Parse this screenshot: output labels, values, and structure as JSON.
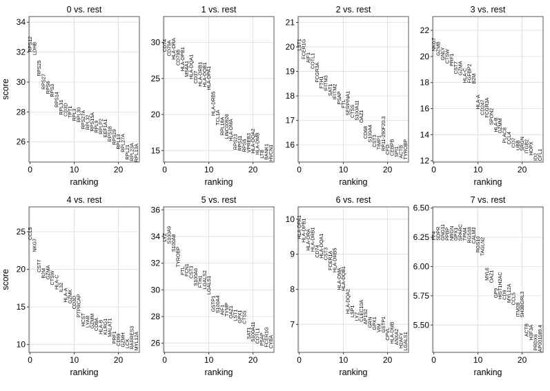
{
  "chart_data": [
    {
      "type": "scatter",
      "title": "0 vs. rest",
      "xlabel": "ranking",
      "ylabel": "score",
      "xticks": [
        0,
        10,
        20
      ],
      "yticks": [
        "26",
        "28",
        "30",
        "32",
        "34"
      ],
      "ylim": [
        24.65,
        34.38
      ],
      "grid": true,
      "genes": [
        "RPS12",
        "LDHB",
        "RPS25",
        "RPS27",
        "RPS6",
        "RPS3",
        "RPS14",
        "RPL31",
        "CD3D",
        "TPT1",
        "RPL3",
        "RPL30",
        "RPS27A",
        "RPL32",
        "RPS15A",
        "RPL9",
        "RPLP2",
        "EEF1A1",
        "RPS18",
        "RPS29",
        "RPL13",
        "RPL27A",
        "RPL21",
        "RPL23A",
        "RPL13A"
      ],
      "scores": [
        32.0,
        31.8,
        30.4,
        29.5,
        29.2,
        29.0,
        28.3,
        27.8,
        27.7,
        27.6,
        27.4,
        27.3,
        26.85,
        26.8,
        26.7,
        26.6,
        26.5,
        26.3,
        26.0,
        25.8,
        25.5,
        25.3,
        24.8,
        24.7,
        24.65
      ]
    },
    {
      "type": "scatter",
      "title": "1 vs. rest",
      "xlabel": "ranking",
      "ylabel": "",
      "xticks": [
        0,
        10,
        20
      ],
      "yticks": [
        "15",
        "20",
        "25",
        "30"
      ],
      "ylim": [
        13.4,
        33.6
      ],
      "grid": true,
      "genes": [
        "CD74",
        "CD79A",
        "HLA-DRA",
        "CD79B",
        "HLA-DPB1",
        "MS4A1",
        "HLA-DQA1",
        "CD37",
        "HLA-DRB1",
        "HLA-DQB1",
        "HLA-DPA1",
        "HLA-DRB5",
        "TCL1A",
        "RPL18A",
        "LINC00926",
        "HLA-DMA",
        "RPS23",
        "RPS11",
        "RPS5",
        "VPREB3",
        "HLA-DQA2",
        "HLA-DMB",
        "LTB",
        "BANK1",
        "HVCN1"
      ],
      "scores": [
        28.7,
        28.1,
        27.6,
        26.8,
        26.0,
        25.2,
        24.9,
        24.3,
        23.9,
        23.8,
        23.4,
        19.8,
        18.5,
        17.1,
        16.6,
        16.3,
        15.1,
        14.95,
        14.8,
        14.7,
        14.6,
        14.4,
        13.9,
        13.7,
        13.5
      ]
    },
    {
      "type": "scatter",
      "title": "2 vs. rest",
      "xlabel": "ranking",
      "ylabel": "",
      "xticks": [
        0,
        10,
        20
      ],
      "yticks": [
        "16",
        "17",
        "18",
        "19",
        "20",
        "21"
      ],
      "ylim": [
        15.3,
        21.24
      ],
      "grid": true,
      "genes": [
        "LST1",
        "FCER1G",
        "AIF1",
        "COTL1",
        "FCGR3A",
        "FTH1",
        "IFITM3",
        "SAT1",
        "IFITM2",
        "PSAP",
        "FTL",
        "SERPINA1",
        "CTSS",
        "S100A11",
        "OAZ1",
        "CD68",
        "S100A4",
        "CST3",
        "TIMP1",
        "RP11-290F20.3",
        "CFD",
        "CEBPB",
        "SPI1",
        "ACTB",
        "TYROBP"
      ],
      "scores": [
        19.85,
        19.5,
        19.35,
        19.1,
        18.55,
        18.3,
        18.2,
        18.0,
        17.85,
        17.65,
        17.5,
        17.2,
        17.1,
        17.0,
        16.9,
        16.25,
        16.1,
        15.9,
        15.8,
        15.75,
        15.6,
        15.55,
        15.5,
        15.45,
        15.4
      ]
    },
    {
      "type": "scatter",
      "title": "3 vs. rest",
      "xlabel": "ranking",
      "ylabel": "",
      "xticks": [
        0,
        10,
        20
      ],
      "yticks": [
        "12",
        "14",
        "16",
        "18",
        "20",
        "22"
      ],
      "ylim": [
        11.9,
        23.06
      ],
      "grid": true,
      "genes": [
        "NKG7",
        "GZMB",
        "GNLY",
        "CTSW",
        "PRF1",
        "CST7",
        "GZMA",
        "HLA-C",
        "FGFBP2",
        "B2M",
        "HLA-A",
        "CD247",
        "FCGR3A",
        "SPON2",
        "HLA-B",
        "GZMM",
        "PLAC8",
        "CCL4",
        "CD7",
        "UBB",
        "SRGN",
        "ITGB2",
        "HOPX",
        "ID2",
        "CFL1"
      ],
      "scores": [
        20.4,
        20.05,
        19.7,
        19.45,
        19.25,
        18.65,
        18.55,
        17.97,
        17.95,
        17.9,
        15.95,
        15.5,
        15.3,
        14.75,
        14.2,
        14.1,
        13.35,
        13.25,
        13.0,
        12.8,
        12.75,
        12.55,
        12.4,
        12.0,
        11.98
      ]
    },
    {
      "type": "scatter",
      "title": "4 vs. rest",
      "xlabel": "ranking",
      "ylabel": "score",
      "xticks": [
        0,
        10,
        20
      ],
      "yticks": [
        "10",
        "15",
        "20",
        "25"
      ],
      "ylim": [
        8.96,
        28.3
      ],
      "grid": true,
      "genes": [
        "CCL5",
        "NKG7",
        "CST7",
        "B2M",
        "GZMA",
        "CTSW",
        "HLA-C",
        "IL32",
        "HLA-A",
        "GZMK",
        "CD3D",
        "PTPRCAP",
        "HCST",
        "LYAR",
        "GZMM",
        "CD8A",
        "HLA-B",
        "KLRG1",
        "MALAT1",
        "PRF1",
        "CD99",
        "GZMH",
        "LCK",
        "RARRES3",
        "MYL12A"
      ],
      "scores": [
        23.9,
        22.3,
        19.6,
        18.8,
        18.65,
        17.9,
        17.3,
        16.95,
        15.6,
        15.45,
        14.7,
        13.6,
        12.4,
        12.25,
        12.1,
        11.8,
        11.35,
        11.3,
        11.0,
        10.1,
        9.8,
        9.65,
        9.5,
        9.35,
        9.2
      ]
    },
    {
      "type": "scatter",
      "title": "5 vs. rest",
      "xlabel": "ranking",
      "ylabel": "",
      "xticks": [
        0,
        10,
        20
      ],
      "yticks": [
        "26",
        "28",
        "30",
        "32",
        "34",
        "36"
      ],
      "ylim": [
        25.31,
        36.22
      ],
      "grid": true,
      "genes": [
        "LYZ",
        "S100A9",
        "S100A8",
        "TYROBP",
        "FTL",
        "FCN1",
        "CST3",
        "S100A6",
        "FTH1",
        "LGALS2",
        "LGALS1",
        "GSTP1",
        "S100A4",
        "AIF1",
        "TYMP",
        "OAZ1",
        "LST1",
        "GPX1",
        "CTSS",
        "SAT1",
        "S100A11",
        "COTL1",
        "PSAP",
        "FCER1G",
        "CYBA"
      ],
      "scores": [
        33.6,
        33.45,
        32.85,
        31.7,
        31.1,
        31.0,
        30.85,
        30.3,
        30.15,
        30.05,
        29.65,
        28.35,
        28.25,
        28.1,
        28.0,
        27.85,
        27.65,
        27.5,
        27.45,
        26.3,
        26.1,
        25.95,
        25.8,
        25.7,
        25.6
      ]
    },
    {
      "type": "scatter",
      "title": "6 vs. rest",
      "xlabel": "ranking",
      "ylabel": "",
      "xticks": [
        0,
        10,
        20
      ],
      "yticks": [
        "7",
        "8",
        "9",
        "10"
      ],
      "ylim": [
        6.2,
        10.35
      ],
      "grid": true,
      "genes": [
        "HLA-DPA1",
        "HLA-DPB1",
        "HLA-DRA",
        "HLA-DRB1",
        "CD74",
        "HLA-DQA1",
        "CST3",
        "FCER1A",
        "HLA-DRB5",
        "HLA-DMA",
        "HLA-DQB1",
        "HLA-DQA2",
        "LSP1",
        "LYZ",
        "CLEC10A",
        "AP1S2",
        "GRN",
        "GPX1",
        "VIM",
        "GSTP1",
        "CPVL",
        "HLA-DMB",
        "ANXA2",
        "H2AFY",
        "LGALS1"
      ],
      "scores": [
        9.43,
        9.33,
        9.1,
        9.07,
        8.9,
        8.88,
        8.83,
        8.54,
        8.48,
        7.98,
        7.95,
        7.3,
        7.2,
        7.1,
        7.07,
        7.0,
        6.9,
        6.84,
        6.77,
        6.76,
        6.54,
        6.44,
        6.41,
        6.31,
        6.25
      ]
    },
    {
      "type": "scatter",
      "title": "7 vs. rest",
      "xlabel": "ranking",
      "ylabel": "",
      "xticks": [
        0,
        10,
        20
      ],
      "yticks": [
        "5.50",
        "5.75",
        "6.00",
        "6.25",
        "6.50"
      ],
      "ylim": [
        5.266,
        6.51
      ],
      "grid": true,
      "genes": [
        "PF4",
        "SDPR",
        "GNG11",
        "PPBP",
        "NRGN",
        "GPX1",
        "SPARC",
        "TPM4",
        "RGS18",
        "CALM3",
        "RGS10",
        "TAGLN2",
        "MYL6",
        "OAZ1",
        "GP9",
        "HIST1H2AC",
        "CD9",
        "MYL12A",
        "CCL5",
        "ITM2B",
        "SH3BGRL3",
        "ACTB",
        "H3F3A",
        "PRDX6",
        "AP001189.4"
      ],
      "scores": [
        6.224,
        6.223,
        6.222,
        6.222,
        6.221,
        6.221,
        6.22,
        6.22,
        6.2,
        6.195,
        6.12,
        6.09,
        5.88,
        5.86,
        5.73,
        5.72,
        5.715,
        5.69,
        5.67,
        5.57,
        5.565,
        5.4,
        5.37,
        5.28,
        5.27
      ]
    }
  ]
}
